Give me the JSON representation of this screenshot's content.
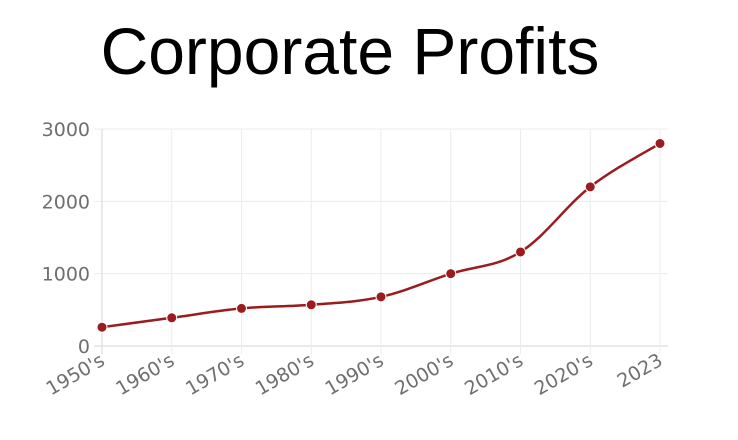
{
  "title": "Corporate Profits",
  "colors": {
    "line": "#9b1b1f",
    "grid": "#ececec",
    "axis": "#d6d6d6",
    "tick_text": "#6f6f6f"
  },
  "chart_data": {
    "type": "line",
    "title": "Corporate Profits",
    "xlabel": "",
    "ylabel": "",
    "categories": [
      "1950's",
      "1960's",
      "1970's",
      "1980's",
      "1990's",
      "2000's",
      "2010's",
      "2020's",
      "2023"
    ],
    "series": [
      {
        "values": [
          260,
          390,
          520,
          570,
          680,
          1000,
          1300,
          2200,
          2800
        ]
      }
    ],
    "ylim": [
      0,
      3000
    ],
    "yticks": [
      0,
      1000,
      2000,
      3000
    ],
    "grid": true,
    "smooth": true,
    "markers": true
  }
}
